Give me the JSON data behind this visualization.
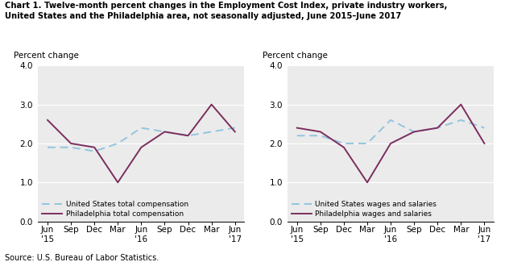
{
  "title_line1": "Chart 1. Twelve-month percent changes in the Employment Cost Index, private industry workers,",
  "title_line2": "United States and the Philadelphia area, not seasonally adjusted, June 2015–June 2017",
  "source": "Source: U.S. Bureau of Labor Statistics.",
  "x_labels": [
    "Jun\n'15",
    "Sep",
    "Dec",
    "Mar",
    "Jun\n'16",
    "Sep",
    "Dec",
    "Mar",
    "Jun\n'17"
  ],
  "chart1": {
    "us_total_comp": [
      1.9,
      1.9,
      1.8,
      2.0,
      2.4,
      2.3,
      2.2,
      2.3,
      2.4
    ],
    "philly_total_comp": [
      2.6,
      2.0,
      1.9,
      1.0,
      1.9,
      2.3,
      2.2,
      3.0,
      2.3
    ],
    "us_label": "United States total compensation",
    "philly_label": "Philadelphia total compensation"
  },
  "chart2": {
    "us_wages": [
      2.2,
      2.2,
      2.0,
      2.0,
      2.6,
      2.3,
      2.4,
      2.6,
      2.4
    ],
    "philly_wages": [
      2.4,
      2.3,
      1.9,
      1.0,
      2.0,
      2.3,
      2.4,
      3.0,
      2.0
    ],
    "us_label": "United States wages and salaries",
    "philly_label": "Philadelphia wages and salaries"
  },
  "ylabel": "Percent change",
  "ylim": [
    0.0,
    4.0
  ],
  "yticks": [
    0.0,
    1.0,
    2.0,
    3.0,
    4.0
  ],
  "us_color": "#92C5DE",
  "philly_color": "#7B2D5E",
  "linewidth": 1.4,
  "bg_color": "#EBEBEB"
}
